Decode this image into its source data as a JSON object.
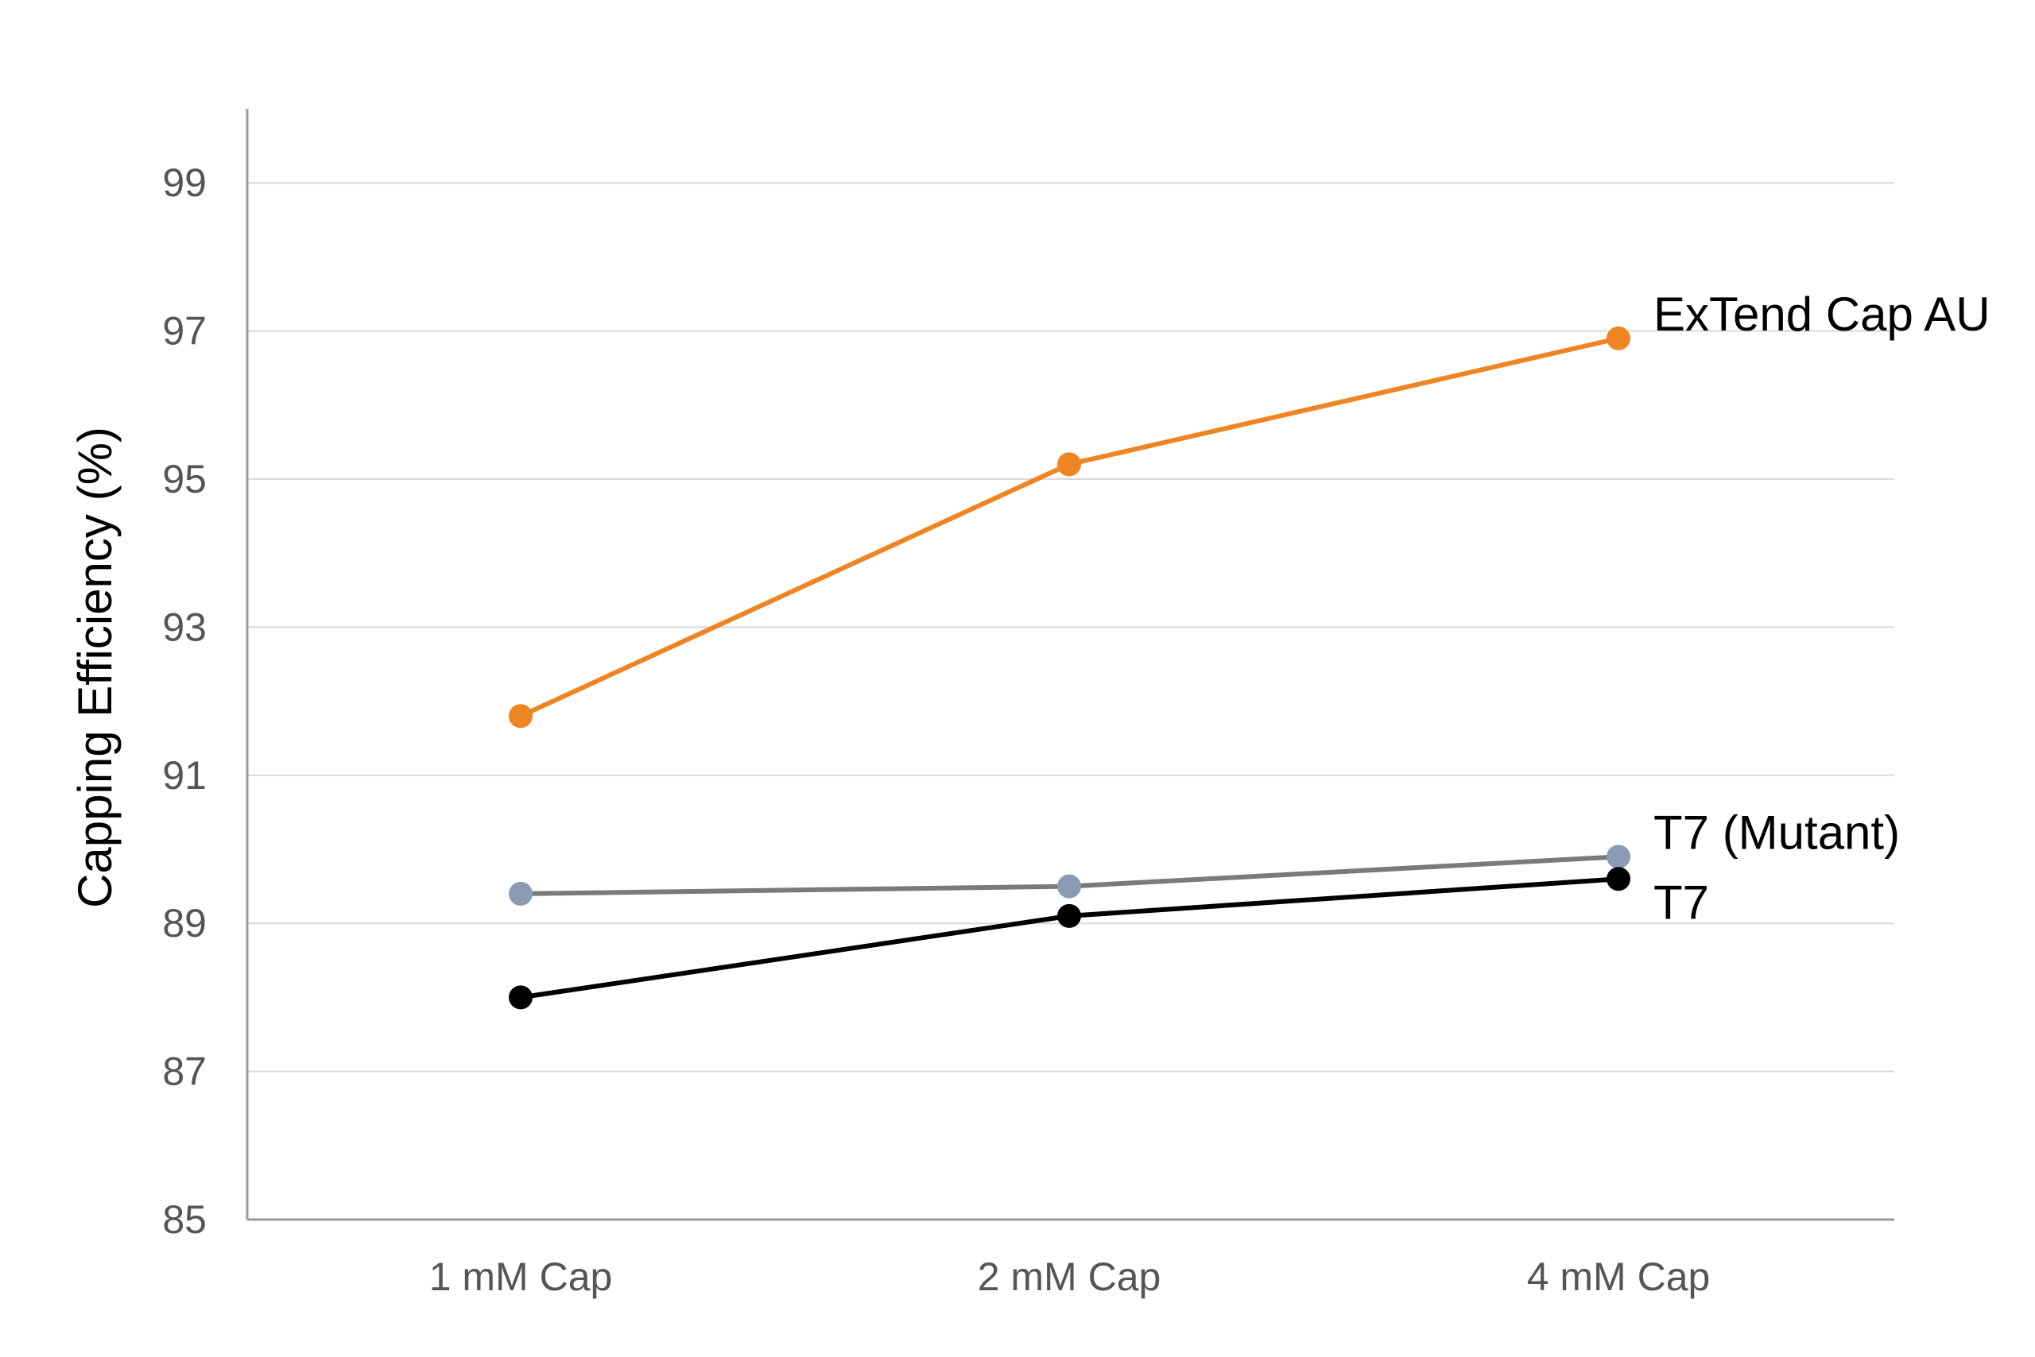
{
  "chart_data": {
    "type": "line",
    "categories": [
      "1 mM Cap",
      "2 mM Cap",
      "4 mM Cap"
    ],
    "ylabel": "Capping Efficiency (%)",
    "xlabel": "",
    "ylim": [
      85,
      100
    ],
    "yticks": [
      85,
      87,
      89,
      91,
      93,
      95,
      97,
      99
    ],
    "grid": true,
    "series": [
      {
        "name": "ExTend Cap AU",
        "values": [
          91.8,
          95.2,
          96.9
        ],
        "line_color": "#EE8522",
        "marker_color": "#EE8522"
      },
      {
        "name": "T7 (Mutant)",
        "values": [
          89.4,
          89.5,
          89.9
        ],
        "line_color": "#7A7A7A",
        "marker_color": "#8A9BB3"
      },
      {
        "name": "T7",
        "values": [
          88.0,
          89.1,
          89.6
        ],
        "line_color": "#000000",
        "marker_color": "#000000"
      }
    ]
  }
}
